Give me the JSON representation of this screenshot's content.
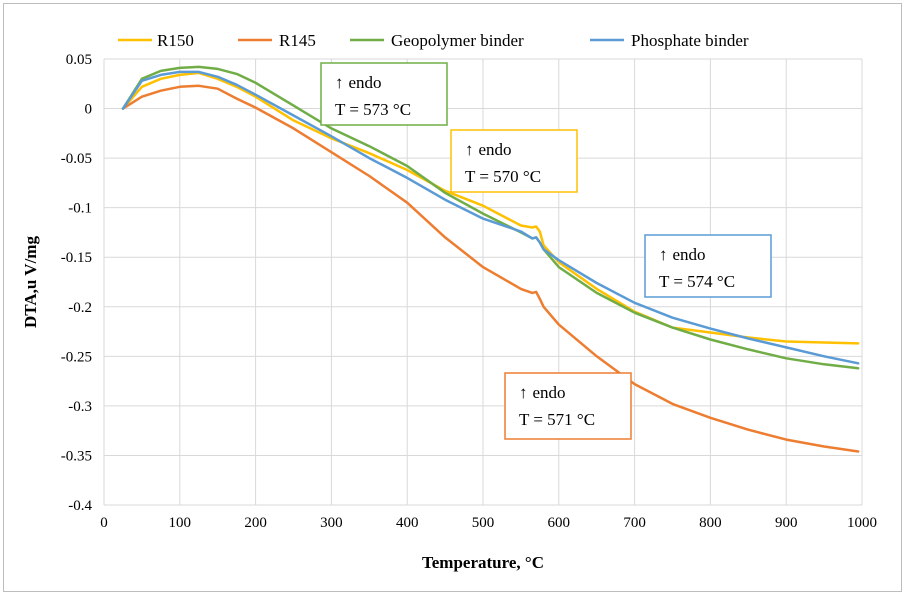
{
  "chart_data": {
    "type": "line",
    "xlabel": "Temperature, °C",
    "ylabel": "DTA,u V/mg",
    "xlim": [
      0,
      1000
    ],
    "ylim": [
      -0.4,
      0.05
    ],
    "x_ticks": [
      0,
      100,
      200,
      300,
      400,
      500,
      600,
      700,
      800,
      900,
      1000
    ],
    "y_ticks": [
      0.05,
      0,
      -0.05,
      -0.1,
      -0.15,
      -0.2,
      -0.25,
      -0.3,
      -0.35,
      -0.4
    ],
    "grid": "both",
    "legend_position": "top",
    "x": [
      25,
      50,
      75,
      100,
      125,
      150,
      175,
      200,
      250,
      300,
      350,
      400,
      450,
      500,
      550,
      565,
      570,
      575,
      580,
      600,
      650,
      700,
      750,
      800,
      850,
      900,
      950,
      995
    ],
    "series": [
      {
        "name": "R150",
        "color": "#FFC000",
        "values": [
          0.0,
          0.022,
          0.03,
          0.034,
          0.036,
          0.03,
          0.022,
          0.012,
          -0.012,
          -0.03,
          -0.045,
          -0.062,
          -0.083,
          -0.098,
          -0.118,
          -0.12,
          -0.119,
          -0.124,
          -0.138,
          -0.155,
          -0.182,
          -0.205,
          -0.221,
          -0.226,
          -0.231,
          -0.235,
          -0.236,
          -0.237
        ]
      },
      {
        "name": "R145",
        "color": "#ED7D31",
        "values": [
          0.0,
          0.012,
          0.018,
          0.022,
          0.023,
          0.02,
          0.01,
          0.001,
          -0.02,
          -0.044,
          -0.068,
          -0.095,
          -0.13,
          -0.16,
          -0.182,
          -0.186,
          -0.185,
          -0.192,
          -0.2,
          -0.218,
          -0.25,
          -0.278,
          -0.298,
          -0.312,
          -0.324,
          -0.334,
          -0.341,
          -0.346
        ]
      },
      {
        "name": "Geopolymer binder",
        "color": "#70AD47",
        "values": [
          0.0,
          0.03,
          0.038,
          0.041,
          0.042,
          0.04,
          0.035,
          0.026,
          0.003,
          -0.02,
          -0.038,
          -0.058,
          -0.085,
          -0.106,
          -0.125,
          -0.131,
          -0.13,
          -0.135,
          -0.142,
          -0.16,
          -0.186,
          -0.206,
          -0.221,
          -0.233,
          -0.243,
          -0.252,
          -0.258,
          -0.262
        ]
      },
      {
        "name": "Phosphate binder",
        "color": "#5B9BD5",
        "values": [
          0.0,
          0.028,
          0.034,
          0.037,
          0.037,
          0.032,
          0.024,
          0.014,
          -0.007,
          -0.028,
          -0.05,
          -0.07,
          -0.092,
          -0.111,
          -0.124,
          -0.131,
          -0.13,
          -0.135,
          -0.142,
          -0.153,
          -0.176,
          -0.196,
          -0.211,
          -0.222,
          -0.232,
          -0.241,
          -0.25,
          -0.257
        ]
      }
    ],
    "annotations": [
      {
        "arrow": "↑",
        "line1": "endo",
        "line2": "T = 573 °C",
        "color": "#70AD47"
      },
      {
        "arrow": "↑",
        "line1": "endo",
        "line2": "T = 570 °C",
        "color": "#FFC000"
      },
      {
        "arrow": "↑",
        "line1": "endo",
        "line2": "T = 574 °C",
        "color": "#5B9BD5"
      },
      {
        "arrow": "↑",
        "line1": "endo",
        "line2": "T = 571 °C",
        "color": "#ED7D31"
      }
    ]
  }
}
